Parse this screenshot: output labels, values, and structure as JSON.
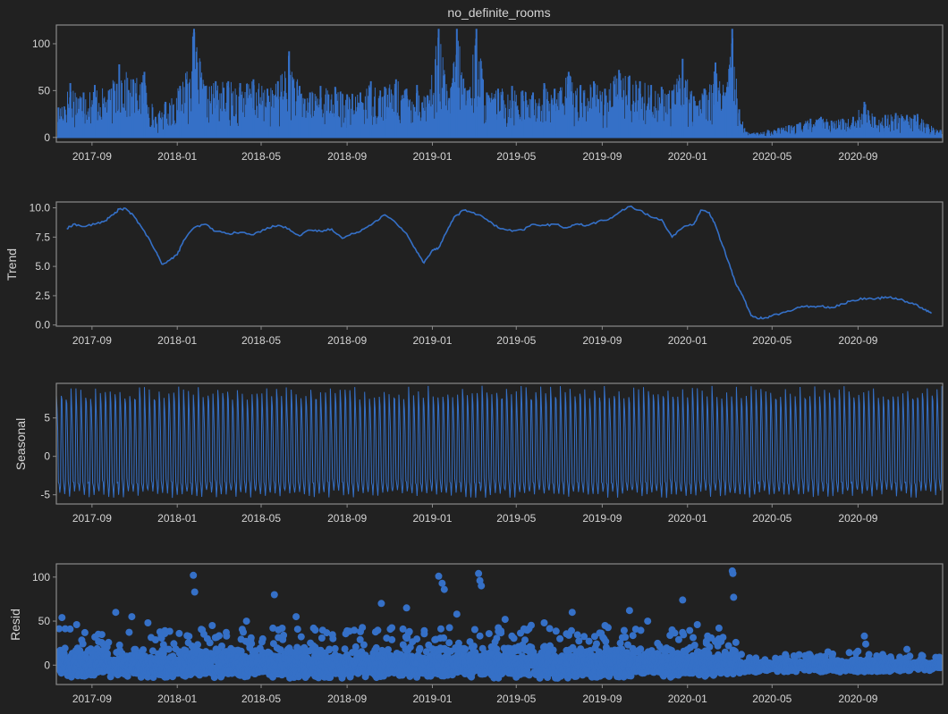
{
  "theme": {
    "background": "#212121",
    "axes_edge": "#8a8a8a",
    "tick_text": "#d4d4d4",
    "line_color": "#3570c7",
    "zero_line": "#000000"
  },
  "chart_data": [
    {
      "type": "line",
      "title": "no_definite_rooms",
      "ylabel": "",
      "x_ticks": [
        "2017-09",
        "2018-01",
        "2018-05",
        "2018-09",
        "2019-01",
        "2019-05",
        "2019-09",
        "2020-01",
        "2020-05",
        "2020-09"
      ],
      "xlim": [
        "2017-07-12",
        "2020-12-31"
      ],
      "y_ticks": [
        "0",
        "50",
        "100"
      ],
      "ylim": [
        -5,
        120
      ],
      "series": [
        {
          "points": [
            [
              "2017-07-15",
              32
            ],
            [
              "2017-08-01",
              58
            ],
            [
              "2017-08-20",
              48
            ],
            [
              "2017-09-05",
              56
            ],
            [
              "2017-09-25",
              50
            ],
            [
              "2017-10-10",
              78
            ],
            [
              "2017-10-30",
              62
            ],
            [
              "2017-11-15",
              70
            ],
            [
              "2017-12-01",
              22
            ],
            [
              "2017-12-15",
              38
            ],
            [
              "2018-01-05",
              55
            ],
            [
              "2018-01-25",
              116
            ],
            [
              "2018-02-10",
              55
            ],
            [
              "2018-02-25",
              60
            ],
            [
              "2018-03-15",
              60
            ],
            [
              "2018-04-01",
              58
            ],
            [
              "2018-04-20",
              62
            ],
            [
              "2018-05-10",
              52
            ],
            [
              "2018-05-25",
              60
            ],
            [
              "2018-06-10",
              92
            ],
            [
              "2018-06-25",
              55
            ],
            [
              "2018-07-10",
              48
            ],
            [
              "2018-07-25",
              55
            ],
            [
              "2018-08-15",
              54
            ],
            [
              "2018-09-01",
              46
            ],
            [
              "2018-09-20",
              48
            ],
            [
              "2018-10-05",
              60
            ],
            [
              "2018-10-25",
              54
            ],
            [
              "2018-11-10",
              62
            ],
            [
              "2018-11-25",
              52
            ],
            [
              "2018-12-10",
              56
            ],
            [
              "2018-12-25",
              45
            ],
            [
              "2019-01-10",
              116
            ],
            [
              "2019-01-25",
              42
            ],
            [
              "2019-02-05",
              116
            ],
            [
              "2019-02-20",
              50
            ],
            [
              "2019-03-05",
              116
            ],
            [
              "2019-03-20",
              48
            ],
            [
              "2019-04-05",
              52
            ],
            [
              "2019-04-25",
              55
            ],
            [
              "2019-05-10",
              50
            ],
            [
              "2019-05-25",
              48
            ],
            [
              "2019-06-10",
              58
            ],
            [
              "2019-06-25",
              52
            ],
            [
              "2019-07-15",
              70
            ],
            [
              "2019-08-01",
              56
            ],
            [
              "2019-08-20",
              60
            ],
            [
              "2019-09-05",
              52
            ],
            [
              "2019-09-25",
              72
            ],
            [
              "2019-10-10",
              66
            ],
            [
              "2019-10-25",
              60
            ],
            [
              "2019-11-10",
              56
            ],
            [
              "2019-11-25",
              54
            ],
            [
              "2019-12-10",
              50
            ],
            [
              "2019-12-25",
              84
            ],
            [
              "2020-01-10",
              44
            ],
            [
              "2020-01-25",
              52
            ],
            [
              "2020-02-10",
              80
            ],
            [
              "2020-02-25",
              48
            ],
            [
              "2020-03-05",
              116
            ],
            [
              "2020-03-15",
              30
            ],
            [
              "2020-03-25",
              6
            ],
            [
              "2020-04-10",
              5
            ],
            [
              "2020-04-25",
              8
            ],
            [
              "2020-05-10",
              10
            ],
            [
              "2020-05-25",
              13
            ],
            [
              "2020-06-10",
              16
            ],
            [
              "2020-06-25",
              20
            ],
            [
              "2020-07-10",
              22
            ],
            [
              "2020-07-25",
              18
            ],
            [
              "2020-08-10",
              20
            ],
            [
              "2020-08-25",
              22
            ],
            [
              "2020-09-10",
              38
            ],
            [
              "2020-09-25",
              22
            ],
            [
              "2020-10-10",
              24
            ],
            [
              "2020-10-25",
              26
            ],
            [
              "2020-11-10",
              24
            ],
            [
              "2020-11-25",
              25
            ],
            [
              "2020-12-10",
              14
            ],
            [
              "2020-12-28",
              8
            ]
          ]
        }
      ]
    },
    {
      "type": "line",
      "title": "",
      "ylabel": "Trend",
      "x_ticks": [
        "2017-09",
        "2018-01",
        "2018-05",
        "2018-09",
        "2019-01",
        "2019-05",
        "2019-09",
        "2020-01",
        "2020-05",
        "2020-09"
      ],
      "xlim": [
        "2017-07-12",
        "2020-12-31"
      ],
      "y_ticks": [
        "0.0",
        "2.5",
        "5.0",
        "7.5",
        "10.0"
      ],
      "ylim": [
        -0.1,
        10.5
      ],
      "series": [
        {
          "points": [
            [
              "2017-07-27",
              8.2
            ],
            [
              "2017-08-05",
              8.6
            ],
            [
              "2017-08-20",
              8.4
            ],
            [
              "2017-09-05",
              8.6
            ],
            [
              "2017-09-20",
              8.9
            ],
            [
              "2017-10-01",
              9.4
            ],
            [
              "2017-10-10",
              9.9
            ],
            [
              "2017-10-20",
              9.9
            ],
            [
              "2017-11-01",
              9.2
            ],
            [
              "2017-11-15",
              8.0
            ],
            [
              "2017-12-01",
              6.3
            ],
            [
              "2017-12-10",
              5.2
            ],
            [
              "2017-12-20",
              5.5
            ],
            [
              "2018-01-01",
              6.0
            ],
            [
              "2018-01-10",
              7.2
            ],
            [
              "2018-01-25",
              8.3
            ],
            [
              "2018-02-10",
              8.6
            ],
            [
              "2018-02-25",
              8.0
            ],
            [
              "2018-03-15",
              7.8
            ],
            [
              "2018-04-01",
              7.9
            ],
            [
              "2018-04-20",
              7.7
            ],
            [
              "2018-05-10",
              8.3
            ],
            [
              "2018-05-25",
              8.5
            ],
            [
              "2018-06-10",
              8.2
            ],
            [
              "2018-06-25",
              7.6
            ],
            [
              "2018-07-10",
              8.1
            ],
            [
              "2018-07-25",
              8.0
            ],
            [
              "2018-08-10",
              8.2
            ],
            [
              "2018-08-25",
              7.4
            ],
            [
              "2018-09-10",
              7.8
            ],
            [
              "2018-09-25",
              8.2
            ],
            [
              "2018-10-10",
              8.8
            ],
            [
              "2018-10-25",
              9.4
            ],
            [
              "2018-11-10",
              8.7
            ],
            [
              "2018-11-25",
              7.8
            ],
            [
              "2018-12-10",
              6.2
            ],
            [
              "2018-12-20",
              5.3
            ],
            [
              "2019-01-01",
              6.4
            ],
            [
              "2019-01-10",
              6.6
            ],
            [
              "2019-01-20",
              7.8
            ],
            [
              "2019-02-01",
              9.2
            ],
            [
              "2019-02-15",
              9.8
            ],
            [
              "2019-03-01",
              9.6
            ],
            [
              "2019-03-20",
              9.0
            ],
            [
              "2019-04-05",
              8.3
            ],
            [
              "2019-04-25",
              8.0
            ],
            [
              "2019-05-10",
              8.1
            ],
            [
              "2019-05-25",
              8.6
            ],
            [
              "2019-06-10",
              8.5
            ],
            [
              "2019-06-25",
              8.6
            ],
            [
              "2019-07-10",
              8.3
            ],
            [
              "2019-07-25",
              8.6
            ],
            [
              "2019-08-10",
              8.5
            ],
            [
              "2019-08-25",
              8.8
            ],
            [
              "2019-09-10",
              9.0
            ],
            [
              "2019-09-25",
              9.6
            ],
            [
              "2019-10-10",
              10.1
            ],
            [
              "2019-10-25",
              9.8
            ],
            [
              "2019-11-10",
              9.2
            ],
            [
              "2019-11-25",
              9.0
            ],
            [
              "2019-12-10",
              7.5
            ],
            [
              "2019-12-25",
              8.3
            ],
            [
              "2020-01-10",
              8.6
            ],
            [
              "2020-01-20",
              9.8
            ],
            [
              "2020-02-01",
              9.6
            ],
            [
              "2020-02-10",
              8.5
            ],
            [
              "2020-02-20",
              6.8
            ],
            [
              "2020-03-01",
              5.2
            ],
            [
              "2020-03-10",
              3.5
            ],
            [
              "2020-03-20",
              2.5
            ],
            [
              "2020-04-01",
              0.8
            ],
            [
              "2020-04-10",
              0.55
            ],
            [
              "2020-04-20",
              0.6
            ],
            [
              "2020-05-01",
              0.8
            ],
            [
              "2020-05-20",
              1.1
            ],
            [
              "2020-06-10",
              1.5
            ],
            [
              "2020-06-25",
              1.6
            ],
            [
              "2020-07-10",
              1.6
            ],
            [
              "2020-07-25",
              1.5
            ],
            [
              "2020-08-10",
              1.8
            ],
            [
              "2020-08-25",
              2.1
            ],
            [
              "2020-09-10",
              2.3
            ],
            [
              "2020-09-25",
              2.2
            ],
            [
              "2020-10-10",
              2.4
            ],
            [
              "2020-10-25",
              2.3
            ],
            [
              "2020-11-10",
              2.0
            ],
            [
              "2020-11-25",
              1.7
            ],
            [
              "2020-12-05",
              1.3
            ],
            [
              "2020-12-15",
              1.0
            ]
          ]
        }
      ]
    },
    {
      "type": "line",
      "title": "",
      "ylabel": "Seasonal",
      "x_ticks": [
        "2017-09",
        "2018-01",
        "2018-05",
        "2018-09",
        "2019-01",
        "2019-05",
        "2019-09",
        "2020-01",
        "2020-05",
        "2020-09"
      ],
      "xlim": [
        "2017-07-12",
        "2020-12-31"
      ],
      "y_ticks": [
        "-5",
        "0",
        "5"
      ],
      "ylim": [
        -6.2,
        9.5
      ],
      "series": [
        {
          "period_days": 7,
          "daily_pattern": [
            9.2,
            7.5,
            3.5,
            -3.5,
            -4.2,
            -5.4,
            -4.0
          ]
        }
      ]
    },
    {
      "type": "scatter",
      "title": "",
      "ylabel": "Resid",
      "x_ticks": [
        "2017-09",
        "2018-01",
        "2018-05",
        "2018-09",
        "2019-01",
        "2019-05",
        "2019-09",
        "2020-01",
        "2020-05",
        "2020-09"
      ],
      "xlim": [
        "2017-07-12",
        "2020-12-31"
      ],
      "y_ticks": [
        "0",
        "50",
        "100"
      ],
      "ylim": [
        -22,
        115
      ],
      "series": [
        {
          "points": [
            [
              "2017-07-20",
              54
            ],
            [
              "2017-08-10",
              46
            ],
            [
              "2017-09-10",
              35
            ],
            [
              "2017-10-05",
              60
            ],
            [
              "2017-10-28",
              55
            ],
            [
              "2017-11-20",
              48
            ],
            [
              "2017-12-20",
              18
            ],
            [
              "2018-01-24",
              102
            ],
            [
              "2018-01-26",
              83
            ],
            [
              "2018-02-20",
              45
            ],
            [
              "2018-04-10",
              50
            ],
            [
              "2018-05-20",
              80
            ],
            [
              "2018-06-20",
              55
            ],
            [
              "2018-07-15",
              42
            ],
            [
              "2018-09-20",
              38
            ],
            [
              "2018-10-20",
              70
            ],
            [
              "2018-11-25",
              65
            ],
            [
              "2019-01-10",
              101
            ],
            [
              "2019-01-15",
              93
            ],
            [
              "2019-01-18",
              86
            ],
            [
              "2019-02-05",
              58
            ],
            [
              "2019-03-08",
              104
            ],
            [
              "2019-03-10",
              96
            ],
            [
              "2019-03-12",
              90
            ],
            [
              "2019-04-15",
              52
            ],
            [
              "2019-06-10",
              48
            ],
            [
              "2019-07-20",
              60
            ],
            [
              "2019-09-05",
              45
            ],
            [
              "2019-10-10",
              62
            ],
            [
              "2019-11-05",
              50
            ],
            [
              "2019-12-10",
              40
            ],
            [
              "2019-12-25",
              74
            ],
            [
              "2020-01-15",
              46
            ],
            [
              "2020-02-15",
              42
            ],
            [
              "2020-03-05",
              107
            ],
            [
              "2020-03-06",
              104
            ],
            [
              "2020-03-07",
              77
            ],
            [
              "2020-05-20",
              12
            ],
            [
              "2020-07-20",
              15
            ],
            [
              "2020-09-10",
              33
            ],
            [
              "2020-09-12",
              24
            ],
            [
              "2020-11-10",
              18
            ]
          ],
          "dense_band": [
            [
              "2017-07-12",
              -14,
              42
            ],
            [
              "2017-12-01",
              -14,
              40
            ],
            [
              "2018-06-01",
              -15,
              44
            ],
            [
              "2019-01-01",
              -14,
              42
            ],
            [
              "2019-06-01",
              -15,
              46
            ],
            [
              "2020-01-01",
              -14,
              40
            ],
            [
              "2020-03-10",
              -10,
              30
            ],
            [
              "2020-03-20",
              -8,
              8
            ],
            [
              "2020-06-01",
              -8,
              12
            ],
            [
              "2020-09-01",
              -8,
              16
            ],
            [
              "2020-12-31",
              -6,
              10
            ]
          ]
        }
      ]
    }
  ]
}
